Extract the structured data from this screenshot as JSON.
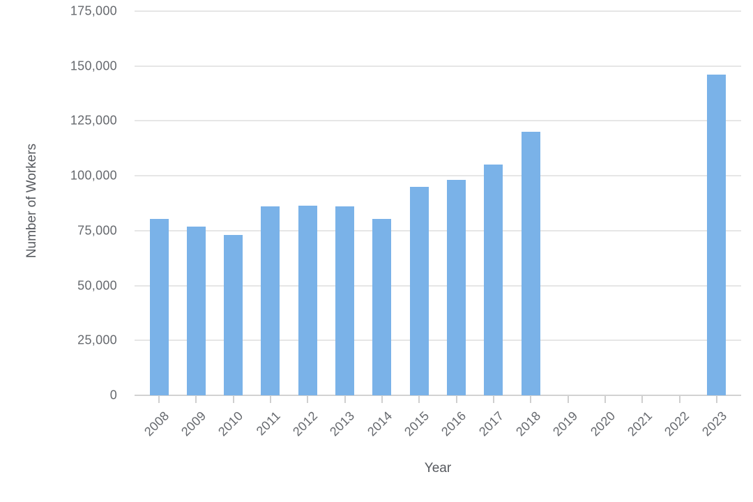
{
  "chart_data": {
    "type": "bar",
    "title": "",
    "xlabel": "Year",
    "ylabel": "Number of Workers",
    "categories": [
      "2008",
      "2009",
      "2010",
      "2011",
      "2012",
      "2013",
      "2014",
      "2015",
      "2016",
      "2017",
      "2018",
      "2019",
      "2020",
      "2021",
      "2022",
      "2023"
    ],
    "values": [
      80500,
      77000,
      73000,
      86000,
      86500,
      86000,
      80500,
      95000,
      98000,
      105000,
      120000,
      0,
      0,
      0,
      0,
      146000
    ],
    "ylim": [
      0,
      175000
    ],
    "ytick_step": 25000,
    "ytick_labels": [
      "0",
      "25,000",
      "50,000",
      "75,000",
      "100,000",
      "125,000",
      "150,000",
      "175,000"
    ],
    "grid": true,
    "legend": false,
    "bar_color": "#7ab2e8",
    "gridline_color": "#e6e6e6",
    "axis_line_color": "#d2d2d2",
    "tick_color": "#cfcfcf",
    "tick_label_color": "#66696e",
    "axis_title_color": "#56595e",
    "background_color": "#ffffff"
  }
}
